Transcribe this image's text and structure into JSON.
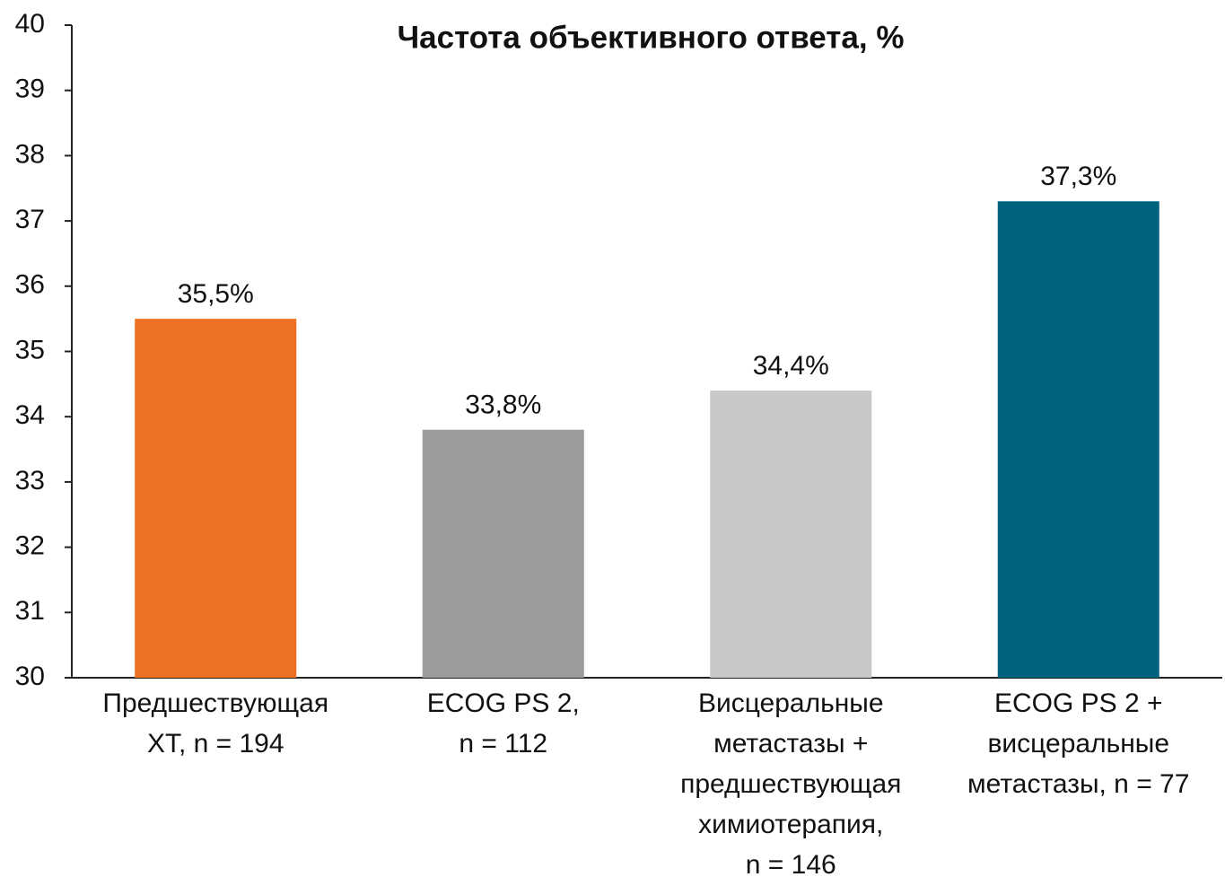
{
  "chart_data": {
    "type": "bar",
    "title": "Частота объективного ответа, %",
    "categories": [
      [
        "Предшествующая",
        "ХТ, n = 194"
      ],
      [
        "ECOG PS 2,",
        "n = 112"
      ],
      [
        "Висцеральные",
        "метастазы +",
        "предшествующая",
        "химиотерапия,",
        "n = 146"
      ],
      [
        "ECOG PS 2 +",
        "висцеральные",
        "метастазы, n = 77"
      ]
    ],
    "values": [
      35.5,
      33.8,
      34.4,
      37.3
    ],
    "value_labels": [
      "35,5%",
      "33,8%",
      "34,4%",
      "37,3%"
    ],
    "colors": [
      "#ee7123",
      "#9b9b9b",
      "#c8c8c8",
      "#00637d"
    ],
    "ylim": [
      30,
      40
    ],
    "yticks": [
      30,
      31,
      32,
      33,
      34,
      35,
      36,
      37,
      38,
      39,
      40
    ],
    "grid": false
  }
}
